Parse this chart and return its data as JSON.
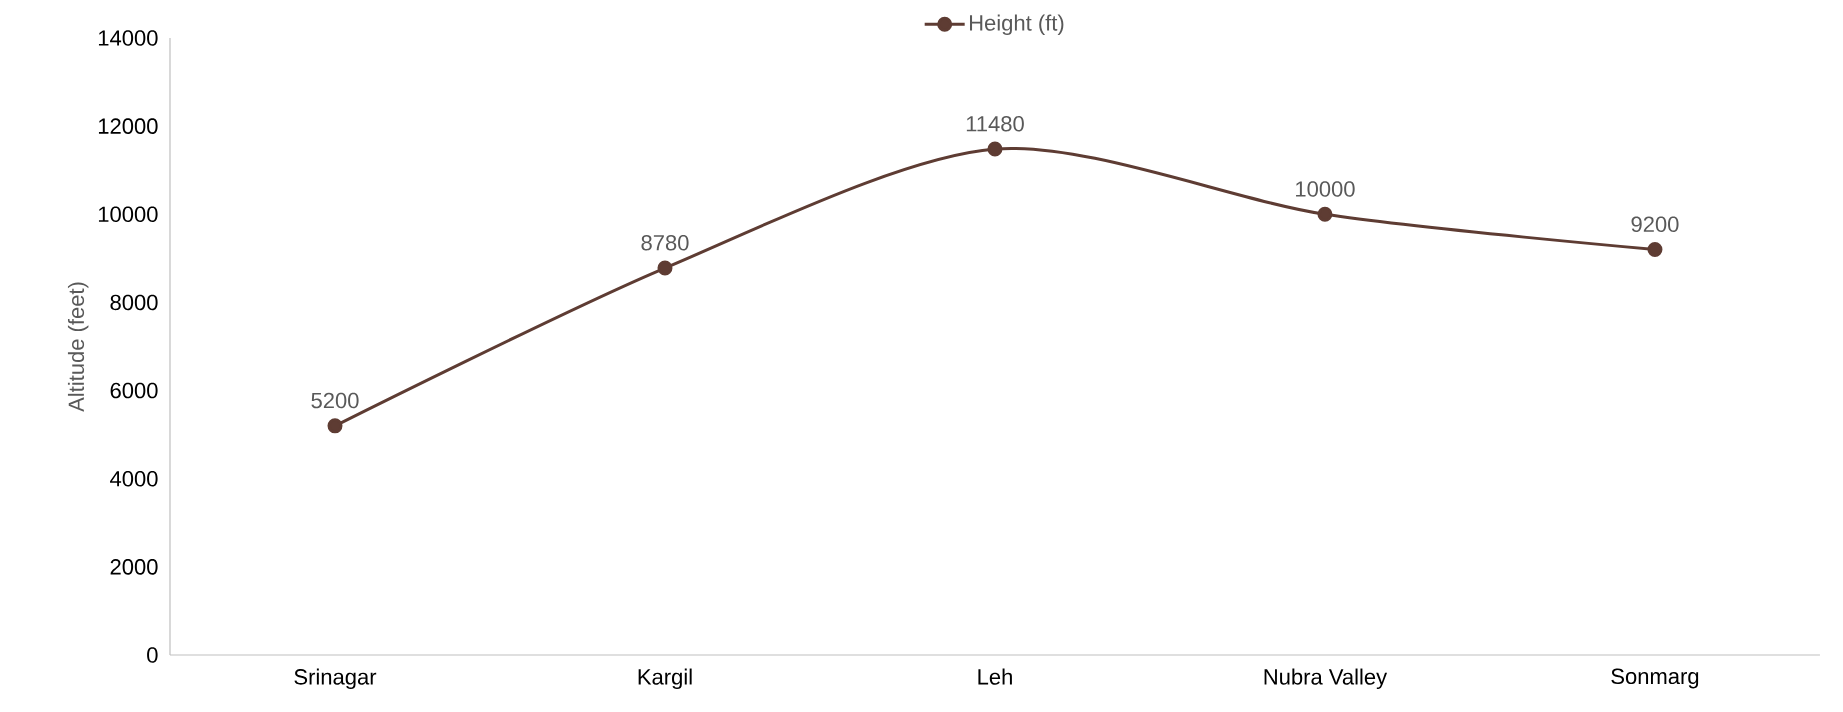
{
  "chart_data": {
    "type": "line",
    "ylabel": "Altitude (feet)",
    "categories": [
      "Srinagar",
      "Kargil",
      "Leh",
      "Nubra Valley",
      "Sonmarg"
    ],
    "series": [
      {
        "name": "Height (ft)",
        "color": "#5e3c33",
        "values": [
          5200,
          8780,
          11480,
          10000,
          9200
        ]
      }
    ],
    "ylim": [
      0,
      14000
    ],
    "yticks": [
      0,
      2000,
      4000,
      6000,
      8000,
      10000,
      12000,
      14000
    ],
    "grid": false,
    "legend": "top",
    "marker": "circle",
    "line_style": "solid",
    "data_labels": true
  }
}
